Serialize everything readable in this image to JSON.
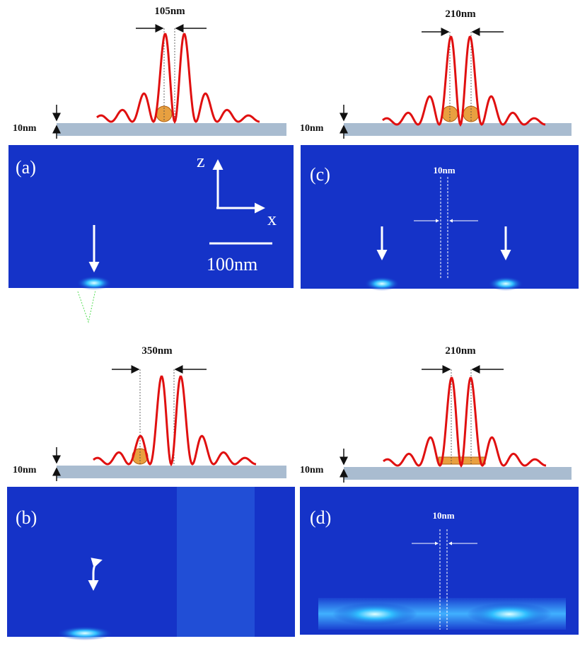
{
  "panels": [
    {
      "label": "(a)",
      "gap_label": "105nm",
      "layer_label": "10nm",
      "axis_z": "z",
      "axis_x": "x",
      "scale_bar": "100nm"
    },
    {
      "label": "(c)",
      "gap_label": "210nm",
      "layer_label": "10nm",
      "slit_label": "10nm"
    },
    {
      "label": "(b)",
      "gap_label": "350nm",
      "layer_label": "10nm"
    },
    {
      "label": "(d)",
      "gap_label": "210nm",
      "layer_label": "10nm",
      "slit_label": "10nm"
    }
  ]
}
